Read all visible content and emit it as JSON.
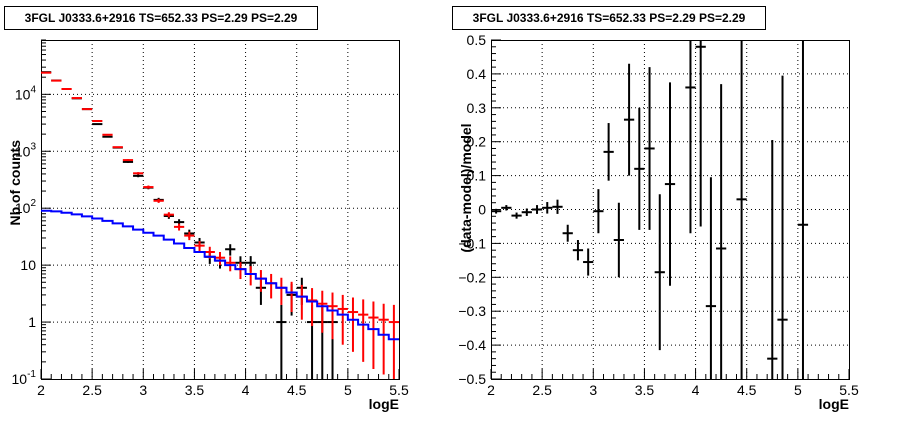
{
  "chart_data": [
    {
      "type": "scatter",
      "title": "3FGL J0333.6+2916 TS=652.33 PS=2.29 PS=2.29",
      "xlabel": "logE",
      "ylabel": "Nb of counts",
      "yscale": "log",
      "xlim": [
        2.0,
        5.5
      ],
      "ylim": [
        0.1,
        90000
      ],
      "grid": true,
      "xticks": [
        "2",
        "2.5",
        "3",
        "3.5",
        "4",
        "4.5",
        "5",
        "5.5"
      ],
      "yticks": [
        {
          "base": "10",
          "exp": "-1"
        },
        {
          "base": "1",
          "exp": ""
        },
        {
          "base": "10",
          "exp": ""
        },
        {
          "base": "10",
          "exp": "2"
        },
        {
          "base": "10",
          "exp": "3"
        },
        {
          "base": "10",
          "exp": "4"
        }
      ],
      "series": [
        {
          "kind": "points",
          "color": "#000000",
          "values": [
            {
              "x": 2.05,
              "y": 24500,
              "lo": 24300,
              "hi": 24700
            },
            {
              "x": 2.15,
              "y": 17500,
              "lo": 17300,
              "hi": 17700
            },
            {
              "x": 2.35,
              "y": 8500,
              "lo": 8400,
              "hi": 8600
            },
            {
              "x": 2.45,
              "y": 5500,
              "lo": 5430,
              "hi": 5570
            },
            {
              "x": 2.55,
              "y": 3000,
              "lo": 2950,
              "hi": 3050
            },
            {
              "x": 2.65,
              "y": 1800,
              "lo": 1760,
              "hi": 1840
            },
            {
              "x": 2.75,
              "y": 1160,
              "lo": 1120,
              "hi": 1200
            },
            {
              "x": 2.85,
              "y": 650,
              "lo": 625,
              "hi": 675
            },
            {
              "x": 2.95,
              "y": 370,
              "lo": 350,
              "hi": 390
            },
            {
              "x": 3.05,
              "y": 230,
              "lo": 215,
              "hi": 245
            },
            {
              "x": 3.15,
              "y": 140,
              "lo": 128,
              "hi": 152
            },
            {
              "x": 3.25,
              "y": 73,
              "lo": 65,
              "hi": 81
            },
            {
              "x": 3.35,
              "y": 57,
              "lo": 50,
              "hi": 64
            },
            {
              "x": 3.45,
              "y": 36,
              "lo": 30,
              "hi": 42
            },
            {
              "x": 3.55,
              "y": 25,
              "lo": 20,
              "hi": 30
            },
            {
              "x": 3.65,
              "y": 14,
              "lo": 10.5,
              "hi": 17.5
            },
            {
              "x": 3.75,
              "y": 12,
              "lo": 8.7,
              "hi": 15.3
            },
            {
              "x": 3.85,
              "y": 19,
              "lo": 14.7,
              "hi": 23.3
            },
            {
              "x": 3.95,
              "y": 11,
              "lo": 7.8,
              "hi": 14.3
            },
            {
              "x": 4.05,
              "y": 11,
              "lo": 7.6,
              "hi": 14.4
            },
            {
              "x": 4.15,
              "y": 4,
              "lo": 2.0,
              "hi": 6.0
            },
            {
              "x": 4.35,
              "y": 1,
              "lo": 0.1,
              "hi": 2.0
            },
            {
              "x": 4.45,
              "y": 3,
              "lo": 1.3,
              "hi": 4.7
            },
            {
              "x": 4.55,
              "y": 4,
              "lo": 2.0,
              "hi": 6.0
            },
            {
              "x": 4.65,
              "y": 1,
              "lo": 0.1,
              "hi": 2.0
            },
            {
              "x": 4.75,
              "y": 1,
              "lo": 0.1,
              "hi": 2.0
            },
            {
              "x": 4.85,
              "y": 1,
              "lo": 0.1,
              "hi": 2.0
            }
          ]
        },
        {
          "kind": "points",
          "color": "#ff0000",
          "values": [
            {
              "x": 2.05,
              "y": 24000,
              "lo": 23850,
              "hi": 24150
            },
            {
              "x": 2.15,
              "y": 17400,
              "lo": 17270,
              "hi": 17530
            },
            {
              "x": 2.25,
              "y": 12400,
              "lo": 12290,
              "hi": 12510
            },
            {
              "x": 2.35,
              "y": 8600,
              "lo": 8510,
              "hi": 8690
            },
            {
              "x": 2.45,
              "y": 5500,
              "lo": 5430,
              "hi": 5570
            },
            {
              "x": 2.55,
              "y": 3400,
              "lo": 3340,
              "hi": 3460
            },
            {
              "x": 2.65,
              "y": 1950,
              "lo": 1910,
              "hi": 1990
            },
            {
              "x": 2.75,
              "y": 1180,
              "lo": 1150,
              "hi": 1210
            },
            {
              "x": 2.85,
              "y": 700,
              "lo": 675,
              "hi": 725
            },
            {
              "x": 2.95,
              "y": 410,
              "lo": 390,
              "hi": 430
            },
            {
              "x": 3.05,
              "y": 235,
              "lo": 220,
              "hi": 250
            },
            {
              "x": 3.15,
              "y": 135,
              "lo": 124,
              "hi": 146
            },
            {
              "x": 3.25,
              "y": 77,
              "lo": 69,
              "hi": 85
            },
            {
              "x": 3.35,
              "y": 47,
              "lo": 40.5,
              "hi": 53.5
            },
            {
              "x": 3.45,
              "y": 33,
              "lo": 27.5,
              "hi": 38.5
            },
            {
              "x": 3.55,
              "y": 22,
              "lo": 17.5,
              "hi": 26.5
            },
            {
              "x": 3.65,
              "y": 17,
              "lo": 13,
              "hi": 21
            },
            {
              "x": 3.75,
              "y": 13.5,
              "lo": 10,
              "hi": 17
            },
            {
              "x": 3.85,
              "y": 11,
              "lo": 7.8,
              "hi": 14.2
            },
            {
              "x": 3.95,
              "y": 8.5,
              "lo": 5.7,
              "hi": 11.3
            },
            {
              "x": 4.05,
              "y": 7,
              "lo": 4.4,
              "hi": 9.6
            },
            {
              "x": 4.15,
              "y": 5.8,
              "lo": 3.4,
              "hi": 8.2
            },
            {
              "x": 4.25,
              "y": 4.8,
              "lo": 2.6,
              "hi": 7.0
            },
            {
              "x": 4.35,
              "y": 4.0,
              "lo": 2.0,
              "hi": 6.0
            },
            {
              "x": 4.45,
              "y": 3.3,
              "lo": 1.5,
              "hi": 5.1
            },
            {
              "x": 4.55,
              "y": 2.8,
              "lo": 1.1,
              "hi": 4.5
            },
            {
              "x": 4.65,
              "y": 2.4,
              "lo": 0.85,
              "hi": 3.95
            },
            {
              "x": 4.75,
              "y": 2.1,
              "lo": 0.65,
              "hi": 3.55
            },
            {
              "x": 4.85,
              "y": 1.9,
              "lo": 0.5,
              "hi": 3.3
            },
            {
              "x": 4.95,
              "y": 1.7,
              "lo": 0.4,
              "hi": 3.0
            },
            {
              "x": 5.05,
              "y": 1.5,
              "lo": 0.3,
              "hi": 2.7
            },
            {
              "x": 5.15,
              "y": 1.35,
              "lo": 0.2,
              "hi": 2.5
            },
            {
              "x": 5.25,
              "y": 1.2,
              "lo": 0.15,
              "hi": 2.3
            },
            {
              "x": 5.35,
              "y": 1.1,
              "lo": 0.12,
              "hi": 2.1
            },
            {
              "x": 5.45,
              "y": 1.0,
              "lo": 0.1,
              "hi": 2.0
            }
          ]
        },
        {
          "kind": "step",
          "color": "#0000ff",
          "bin_width": 0.1,
          "values": [
            {
              "x": 2.05,
              "y": 90
            },
            {
              "x": 2.15,
              "y": 88
            },
            {
              "x": 2.25,
              "y": 83
            },
            {
              "x": 2.35,
              "y": 78
            },
            {
              "x": 2.45,
              "y": 72
            },
            {
              "x": 2.55,
              "y": 66
            },
            {
              "x": 2.65,
              "y": 60
            },
            {
              "x": 2.75,
              "y": 54
            },
            {
              "x": 2.85,
              "y": 48
            },
            {
              "x": 2.95,
              "y": 42
            },
            {
              "x": 3.05,
              "y": 37
            },
            {
              "x": 3.15,
              "y": 33
            },
            {
              "x": 3.25,
              "y": 28
            },
            {
              "x": 3.35,
              "y": 24
            },
            {
              "x": 3.45,
              "y": 20
            },
            {
              "x": 3.55,
              "y": 17
            },
            {
              "x": 3.65,
              "y": 14
            },
            {
              "x": 3.75,
              "y": 12
            },
            {
              "x": 3.85,
              "y": 10
            },
            {
              "x": 3.95,
              "y": 8.5
            },
            {
              "x": 4.05,
              "y": 7.0
            },
            {
              "x": 4.15,
              "y": 5.8
            },
            {
              "x": 4.25,
              "y": 4.8
            },
            {
              "x": 4.35,
              "y": 4.0
            },
            {
              "x": 4.45,
              "y": 3.3
            },
            {
              "x": 4.55,
              "y": 2.8
            },
            {
              "x": 4.65,
              "y": 2.3
            },
            {
              "x": 4.75,
              "y": 1.9
            },
            {
              "x": 4.85,
              "y": 1.6
            },
            {
              "x": 4.95,
              "y": 1.35
            },
            {
              "x": 5.05,
              "y": 1.1
            },
            {
              "x": 5.15,
              "y": 0.9
            },
            {
              "x": 5.25,
              "y": 0.75
            },
            {
              "x": 5.35,
              "y": 0.6
            },
            {
              "x": 5.45,
              "y": 0.5
            }
          ]
        }
      ]
    },
    {
      "type": "scatter",
      "title": "3FGL J0333.6+2916 TS=652.33 PS=2.29 PS=2.29",
      "xlabel": "logE",
      "ylabel": "(data-model)/model",
      "yscale": "linear",
      "xlim": [
        2.0,
        5.5
      ],
      "ylim": [
        -0.5,
        0.5
      ],
      "grid": true,
      "xticks": [
        "2",
        "2.5",
        "3",
        "3.5",
        "4",
        "4.5",
        "5",
        "5.5"
      ],
      "yticks": [
        "−0.5",
        "−0.4",
        "−0.3",
        "−0.2",
        "−0.1",
        "0",
        "0.1",
        "0.2",
        "0.3",
        "0.4",
        "0.5"
      ],
      "series": [
        {
          "kind": "points",
          "color": "#000000",
          "values": [
            {
              "x": 2.05,
              "y": -0.005,
              "lo": -0.012,
              "hi": 0.002
            },
            {
              "x": 2.15,
              "y": 0.005,
              "lo": -0.003,
              "hi": 0.013
            },
            {
              "x": 2.25,
              "y": -0.018,
              "lo": -0.027,
              "hi": -0.009
            },
            {
              "x": 2.35,
              "y": -0.008,
              "lo": -0.019,
              "hi": 0.003
            },
            {
              "x": 2.45,
              "y": 0.0,
              "lo": -0.013,
              "hi": 0.013
            },
            {
              "x": 2.55,
              "y": 0.005,
              "lo": -0.012,
              "hi": 0.022
            },
            {
              "x": 2.65,
              "y": 0.008,
              "lo": -0.013,
              "hi": 0.029
            },
            {
              "x": 2.75,
              "y": -0.07,
              "lo": -0.095,
              "hi": -0.045
            },
            {
              "x": 2.85,
              "y": -0.12,
              "lo": -0.15,
              "hi": -0.09
            },
            {
              "x": 2.95,
              "y": -0.155,
              "lo": -0.195,
              "hi": -0.115
            },
            {
              "x": 3.05,
              "y": -0.005,
              "lo": -0.07,
              "hi": 0.06
            },
            {
              "x": 3.15,
              "y": 0.17,
              "lo": 0.085,
              "hi": 0.255
            },
            {
              "x": 3.25,
              "y": -0.09,
              "lo": -0.2,
              "hi": 0.02
            },
            {
              "x": 3.35,
              "y": 0.265,
              "lo": 0.1,
              "hi": 0.43
            },
            {
              "x": 3.45,
              "y": 0.12,
              "lo": -0.06,
              "hi": 0.3
            },
            {
              "x": 3.55,
              "y": 0.18,
              "lo": -0.06,
              "hi": 0.42
            },
            {
              "x": 3.65,
              "y": -0.185,
              "lo": -0.415,
              "hi": 0.045
            },
            {
              "x": 3.75,
              "y": 0.075,
              "lo": -0.225,
              "hi": 0.375
            },
            {
              "x": 3.95,
              "y": 0.36,
              "lo": -0.07,
              "hi": 0.79
            },
            {
              "x": 4.05,
              "y": 0.48,
              "lo": -0.05,
              "hi": 1.0
            },
            {
              "x": 4.15,
              "y": -0.285,
              "lo": -0.56,
              "hi": 0.095
            },
            {
              "x": 4.25,
              "y": -0.115,
              "lo": -0.6,
              "hi": 0.37
            },
            {
              "x": 4.45,
              "y": 0.03,
              "lo": -0.62,
              "hi": 0.68
            },
            {
              "x": 4.75,
              "y": -0.44,
              "lo": -0.6,
              "hi": 0.205
            },
            {
              "x": 4.85,
              "y": -0.325,
              "lo": -0.6,
              "hi": 0.395
            },
            {
              "x": 5.05,
              "y": -0.045,
              "lo": -0.6,
              "hi": 0.9
            }
          ]
        }
      ]
    }
  ]
}
